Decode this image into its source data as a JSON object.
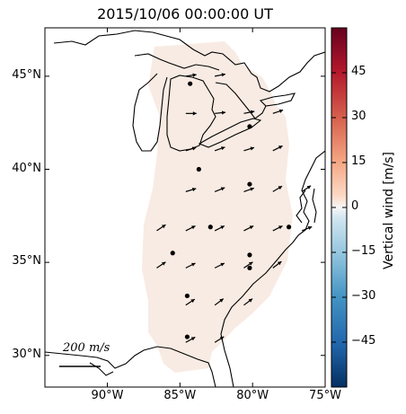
{
  "title": "2015/10/06 00:00:00 UT",
  "lat_ticks": [
    {
      "label": "45°N",
      "lat": 45
    },
    {
      "label": "40°N",
      "lat": 40
    },
    {
      "label": "35°N",
      "lat": 35
    },
    {
      "label": "30°N",
      "lat": 30
    }
  ],
  "lon_ticks": [
    {
      "label": "90°W",
      "lon": -90
    },
    {
      "label": "85°W",
      "lon": -85
    },
    {
      "label": "80°W",
      "lon": -80
    },
    {
      "label": "75°W",
      "lon": -75
    }
  ],
  "colorbar": {
    "title": "Vertical wind [m/s]",
    "range": [
      -60,
      60
    ],
    "ticks": [
      {
        "label": "45",
        "value": 45
      },
      {
        "label": "30",
        "value": 30
      },
      {
        "label": "15",
        "value": 15
      },
      {
        "label": "0",
        "value": 0
      },
      {
        "label": "−15",
        "value": -15
      },
      {
        "label": "−30",
        "value": -30
      },
      {
        "label": "−45",
        "value": -45
      }
    ],
    "colormap": "RdBu_r"
  },
  "scale_label": "200 m/s",
  "field_color": "#f8ebe3",
  "stations": [
    {
      "lon": -84.3,
      "lat": 44.6
    },
    {
      "lon": -80.2,
      "lat": 42.3
    },
    {
      "lon": -83.7,
      "lat": 40.0
    },
    {
      "lon": -80.2,
      "lat": 39.2
    },
    {
      "lon": -82.9,
      "lat": 36.9
    },
    {
      "lon": -77.5,
      "lat": 36.9
    },
    {
      "lon": -85.5,
      "lat": 35.5
    },
    {
      "lon": -80.2,
      "lat": 35.4
    },
    {
      "lon": -80.2,
      "lat": 34.7
    },
    {
      "lon": -84.5,
      "lat": 33.2
    },
    {
      "lon": -84.5,
      "lat": 31.0
    }
  ],
  "wind_vectors": [
    {
      "lon": -84.6,
      "lat": 45.0,
      "u": 1.0,
      "v": 0.15
    },
    {
      "lon": -82.6,
      "lat": 45.0,
      "u": 1.0,
      "v": 0.2
    },
    {
      "lon": -84.6,
      "lat": 43.0,
      "u": 1.0,
      "v": 0.0
    },
    {
      "lon": -82.6,
      "lat": 43.0,
      "u": 1.0,
      "v": 0.1
    },
    {
      "lon": -80.6,
      "lat": 43.0,
      "u": 1.0,
      "v": 0.2
    },
    {
      "lon": -78.6,
      "lat": 43.0,
      "u": 0.9,
      "v": 0.3
    },
    {
      "lon": -84.6,
      "lat": 41.0,
      "u": 1.0,
      "v": 0.3
    },
    {
      "lon": -82.6,
      "lat": 41.0,
      "u": 1.0,
      "v": 0.35
    },
    {
      "lon": -80.6,
      "lat": 41.0,
      "u": 1.0,
      "v": 0.3
    },
    {
      "lon": -78.6,
      "lat": 41.0,
      "u": 1.0,
      "v": 0.5
    },
    {
      "lon": -84.6,
      "lat": 38.8,
      "u": 1.0,
      "v": 0.3
    },
    {
      "lon": -82.6,
      "lat": 38.8,
      "u": 1.0,
      "v": 0.4
    },
    {
      "lon": -80.6,
      "lat": 38.8,
      "u": 1.0,
      "v": 0.35
    },
    {
      "lon": -78.6,
      "lat": 38.8,
      "u": 1.0,
      "v": 0.6
    },
    {
      "lon": -76.6,
      "lat": 38.8,
      "u": 0.9,
      "v": 0.6
    },
    {
      "lon": -86.6,
      "lat": 36.7,
      "u": 0.9,
      "v": 0.6
    },
    {
      "lon": -84.6,
      "lat": 36.7,
      "u": 1.0,
      "v": 0.5
    },
    {
      "lon": -82.6,
      "lat": 36.7,
      "u": 1.0,
      "v": 0.5
    },
    {
      "lon": -80.6,
      "lat": 36.7,
      "u": 1.0,
      "v": 0.5
    },
    {
      "lon": -78.6,
      "lat": 36.7,
      "u": 1.0,
      "v": 0.5
    },
    {
      "lon": -76.6,
      "lat": 36.7,
      "u": 1.0,
      "v": 0.4
    },
    {
      "lon": -86.6,
      "lat": 34.7,
      "u": 0.9,
      "v": 0.6
    },
    {
      "lon": -84.6,
      "lat": 34.7,
      "u": 1.0,
      "v": 0.5
    },
    {
      "lon": -82.6,
      "lat": 34.7,
      "u": 1.0,
      "v": 0.5
    },
    {
      "lon": -80.6,
      "lat": 34.7,
      "u": 0.9,
      "v": 0.6
    },
    {
      "lon": -78.6,
      "lat": 34.7,
      "u": 0.8,
      "v": 0.6
    },
    {
      "lon": -84.6,
      "lat": 32.7,
      "u": 0.9,
      "v": 0.6
    },
    {
      "lon": -82.6,
      "lat": 32.7,
      "u": 0.8,
      "v": 0.6
    },
    {
      "lon": -80.6,
      "lat": 32.7,
      "u": 0.8,
      "v": 0.6
    },
    {
      "lon": -84.6,
      "lat": 30.7,
      "u": 0.9,
      "v": 0.5
    },
    {
      "lon": -82.6,
      "lat": 30.7,
      "u": 0.8,
      "v": 0.5
    }
  ]
}
